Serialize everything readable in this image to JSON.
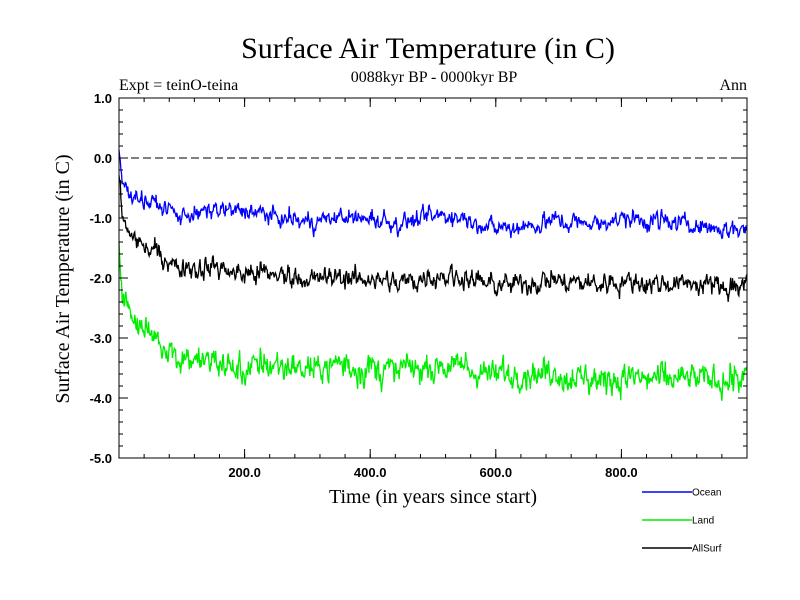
{
  "chart_data": {
    "type": "line",
    "title": "Surface Air Temperature (in C)",
    "subtitle": "0088kyr BP - 0000kyr BP",
    "experiment_label": "Expt = teinO-teina",
    "season_label": "Ann",
    "xlabel": "Time (in years since start)",
    "ylabel": "Surface Air Temperature (in C)",
    "xlim": [
      0,
      1000
    ],
    "ylim": [
      -5.0,
      1.0
    ],
    "x_ticks": [
      200,
      400,
      600,
      800
    ],
    "x_tick_labels": [
      "200.0",
      "400.0",
      "600.0",
      "800.0"
    ],
    "y_ticks": [
      1.0,
      0.0,
      -1.0,
      -2.0,
      -3.0,
      -4.0,
      -5.0
    ],
    "y_tick_labels": [
      "1.0",
      "0.0",
      "-1.0",
      "-2.0",
      "-3.0",
      "-4.0",
      "-5.0"
    ],
    "reference_line": 0.0,
    "legend_position": "bottom-right",
    "series": [
      {
        "name": "Ocean",
        "color": "#0000ff",
        "x": [
          0,
          5,
          10,
          20,
          30,
          50,
          75,
          100,
          150,
          200,
          250,
          300,
          350,
          400,
          450,
          500,
          550,
          600,
          650,
          700,
          750,
          800,
          850,
          900,
          950,
          1000
        ],
        "y": [
          0.1,
          -0.4,
          -0.5,
          -0.6,
          -0.65,
          -0.75,
          -0.85,
          -0.95,
          -0.9,
          -0.85,
          -1.0,
          -1.05,
          -1.0,
          -1.0,
          -1.1,
          -0.95,
          -1.0,
          -1.2,
          -1.15,
          -1.05,
          -1.1,
          -1.0,
          -1.05,
          -1.1,
          -1.15,
          -1.2
        ],
        "noise": 0.16
      },
      {
        "name": "Land",
        "color": "#00ee00",
        "x": [
          0,
          5,
          10,
          20,
          30,
          50,
          75,
          100,
          150,
          200,
          250,
          300,
          350,
          400,
          450,
          500,
          550,
          600,
          650,
          700,
          750,
          800,
          850,
          900,
          950,
          1000
        ],
        "y": [
          -1.5,
          -2.2,
          -2.4,
          -2.6,
          -2.75,
          -2.95,
          -3.15,
          -3.3,
          -3.45,
          -3.5,
          -3.45,
          -3.5,
          -3.45,
          -3.5,
          -3.55,
          -3.45,
          -3.5,
          -3.65,
          -3.6,
          -3.6,
          -3.7,
          -3.65,
          -3.7,
          -3.7,
          -3.65,
          -3.7
        ],
        "noise": 0.27
      },
      {
        "name": "AllSurf",
        "color": "#000000",
        "x": [
          0,
          5,
          10,
          20,
          30,
          50,
          75,
          100,
          150,
          200,
          250,
          300,
          350,
          400,
          450,
          500,
          550,
          600,
          650,
          700,
          750,
          800,
          850,
          900,
          950,
          1000
        ],
        "y": [
          -0.3,
          -1.0,
          -1.15,
          -1.3,
          -1.4,
          -1.55,
          -1.7,
          -1.8,
          -1.85,
          -1.9,
          -1.95,
          -2.0,
          -2.0,
          -2.0,
          -2.1,
          -1.95,
          -2.0,
          -2.15,
          -2.1,
          -2.05,
          -2.1,
          -2.05,
          -2.1,
          -2.1,
          -2.1,
          -2.15
        ],
        "noise": 0.19
      }
    ]
  }
}
